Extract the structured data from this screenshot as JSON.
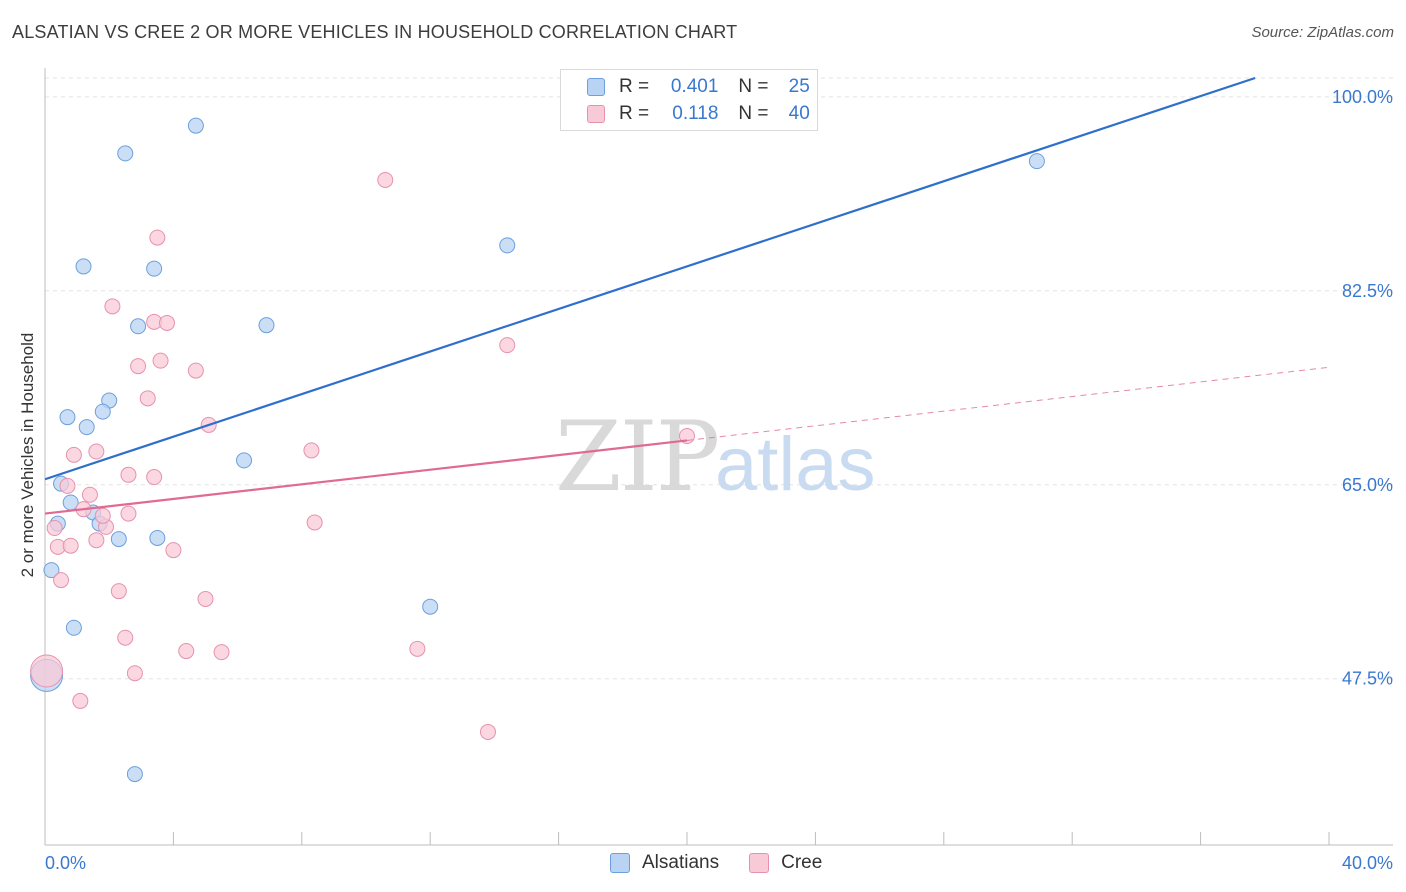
{
  "title": "ALSATIAN VS CREE 2 OR MORE VEHICLES IN HOUSEHOLD CORRELATION CHART",
  "source": "Source: ZipAtlas.com",
  "watermark": {
    "zip": "ZIP",
    "atlas": "atlas"
  },
  "legend_top": {
    "rows": [
      {
        "r_label": "R =",
        "r_value": "0.401",
        "n_label": "N =",
        "n_value": "25"
      },
      {
        "r_label": "R =",
        "r_value": "0.118",
        "n_label": "N =",
        "n_value": "40"
      }
    ]
  },
  "colors": {
    "alsatians_fill": "#b8d3f3",
    "alsatians_stroke": "#6d9fdc",
    "alsatians_line": "#2f6fcc",
    "cree_fill": "#f8c9d7",
    "cree_stroke": "#e792ad",
    "cree_line": "#e06a92",
    "axis_label": "#3a78d0",
    "grid": "#e3e3e3"
  },
  "chart_data": {
    "type": "scatter",
    "title": "ALSATIAN VS CREE 2 OR MORE VEHICLES IN HOUSEHOLD CORRELATION CHART",
    "xlabel": "",
    "ylabel": "2 or more Vehicles in Household",
    "xlim": [
      0,
      40
    ],
    "ylim": [
      32.5,
      101.7
    ],
    "x_tick_labels": [
      {
        "value": 0,
        "label": "0.0%"
      },
      {
        "value": 40,
        "label": "40.0%"
      }
    ],
    "y_tick_labels": [
      {
        "value": 100,
        "label": "100.0%"
      },
      {
        "value": 82.5,
        "label": "82.5%"
      },
      {
        "value": 65,
        "label": "65.0%"
      },
      {
        "value": 47.5,
        "label": "47.5%"
      }
    ],
    "x_minor_ticks": [
      0,
      4,
      8,
      12,
      16,
      20,
      24,
      28,
      32,
      36,
      40
    ],
    "series": [
      {
        "name": "Alsatians",
        "points": [
          [
            4.7,
            97.4
          ],
          [
            2.5,
            94.9
          ],
          [
            1.2,
            84.7
          ],
          [
            3.4,
            84.5
          ],
          [
            14.4,
            86.6
          ],
          [
            30.9,
            94.2
          ],
          [
            2.9,
            79.3
          ],
          [
            6.9,
            79.4
          ],
          [
            2.0,
            72.6
          ],
          [
            1.8,
            71.6
          ],
          [
            0.7,
            71.1
          ],
          [
            1.3,
            70.2
          ],
          [
            6.2,
            67.2
          ],
          [
            0.5,
            65.1
          ],
          [
            0.8,
            63.4
          ],
          [
            1.5,
            62.5
          ],
          [
            0.4,
            61.5
          ],
          [
            1.7,
            61.5
          ],
          [
            2.3,
            60.1
          ],
          [
            3.5,
            60.2
          ],
          [
            0.2,
            57.3
          ],
          [
            12.0,
            54.0
          ],
          [
            0.9,
            52.1
          ],
          [
            0.05,
            47.8
          ],
          [
            2.8,
            38.9
          ]
        ],
        "trend": {
          "x": [
            0,
            37.7
          ],
          "y": [
            65.5,
            101.7
          ]
        }
      },
      {
        "name": "Cree",
        "points": [
          [
            10.6,
            92.5
          ],
          [
            3.5,
            87.3
          ],
          [
            2.1,
            81.1
          ],
          [
            3.4,
            79.7
          ],
          [
            3.8,
            79.6
          ],
          [
            14.4,
            77.6
          ],
          [
            3.6,
            76.2
          ],
          [
            2.9,
            75.7
          ],
          [
            4.7,
            75.3
          ],
          [
            3.2,
            72.8
          ],
          [
            5.1,
            70.4
          ],
          [
            1.6,
            68.0
          ],
          [
            0.9,
            67.7
          ],
          [
            8.3,
            68.1
          ],
          [
            20.0,
            69.4
          ],
          [
            3.4,
            65.7
          ],
          [
            2.6,
            65.9
          ],
          [
            0.7,
            64.9
          ],
          [
            1.4,
            64.1
          ],
          [
            1.2,
            62.8
          ],
          [
            2.6,
            62.4
          ],
          [
            8.4,
            61.6
          ],
          [
            0.3,
            61.1
          ],
          [
            1.9,
            61.2
          ],
          [
            1.6,
            60.0
          ],
          [
            0.4,
            59.4
          ],
          [
            0.8,
            59.5
          ],
          [
            4.0,
            59.1
          ],
          [
            0.5,
            56.4
          ],
          [
            2.3,
            55.4
          ],
          [
            5.0,
            54.7
          ],
          [
            2.5,
            51.2
          ],
          [
            4.4,
            50.0
          ],
          [
            5.5,
            49.9
          ],
          [
            11.6,
            50.2
          ],
          [
            2.8,
            48.0
          ],
          [
            1.1,
            45.5
          ],
          [
            13.8,
            42.7
          ],
          [
            0.05,
            48.2
          ],
          [
            1.8,
            62.2
          ]
        ],
        "trend": {
          "x": [
            0,
            20.0
          ],
          "y": [
            62.4,
            69.0
          ]
        },
        "trend_dashed": {
          "x": [
            20.0,
            40.0
          ],
          "y": [
            69.0,
            75.6
          ]
        }
      }
    ],
    "legend": [
      "Alsatians",
      "Cree"
    ]
  }
}
